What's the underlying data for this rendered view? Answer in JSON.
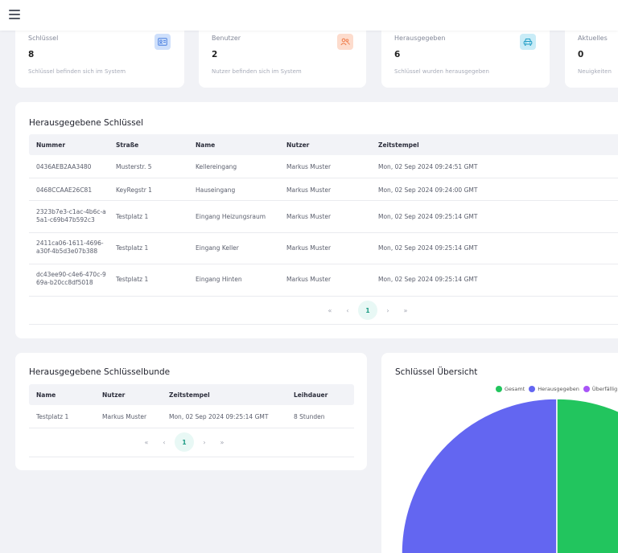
{
  "stats": [
    {
      "label": "Schlüssel",
      "value": "8",
      "desc": "Schlüssel befinden sich im System",
      "icon": "id-card-icon",
      "icon_bg": "#cfe0fb",
      "icon_color": "#4a7fe0"
    },
    {
      "label": "Benutzer",
      "value": "2",
      "desc": "Nutzer befinden sich im System",
      "icon": "users-icon",
      "icon_bg": "#fddccd",
      "icon_color": "#ef7b49"
    },
    {
      "label": "Herausgegeben",
      "value": "6",
      "desc": "Schlüssel wurden herausgegeben",
      "icon": "car-icon",
      "icon_bg": "#c9ecf7",
      "icon_color": "#1e9cc4"
    },
    {
      "label": "Aktuelles",
      "value": "0",
      "desc": "Neuigkeiten"
    }
  ],
  "keys_table": {
    "title": "Herausgegebene Schlüssel",
    "columns": [
      "Nummer",
      "Straße",
      "Name",
      "Nutzer",
      "Zeitstempel"
    ],
    "rows": [
      [
        "0436AEB2AA3480",
        "Musterstr. 5",
        "Kellereingang",
        "Markus Muster",
        "Mon, 02 Sep 2024 09:24:51 GMT"
      ],
      [
        "0468CCAAE26C81",
        "KeyRegstr 1",
        "Hauseingang",
        "Markus Muster",
        "Mon, 02 Sep 2024 09:24:00 GMT"
      ],
      [
        "2323b7e3-c1ac-4b6c-a5a1-c69b47b592c3",
        "Testplatz 1",
        "Eingang Heizungsraum",
        "Markus Muster",
        "Mon, 02 Sep 2024 09:25:14 GMT"
      ],
      [
        "2411ca06-1611-4696-a30f-4b5d3e07b388",
        "Testplatz 1",
        "Eingang Keller",
        "Markus Muster",
        "Mon, 02 Sep 2024 09:25:14 GMT"
      ],
      [
        "dc43ee90-c4e6-470c-969a-b20cc8df5018",
        "Testplatz 1",
        "Eingang Hinten",
        "Markus Muster",
        "Mon, 02 Sep 2024 09:25:14 GMT"
      ]
    ],
    "pager": {
      "first": "«",
      "prev": "‹",
      "page": "1",
      "next": "›",
      "last": "»"
    }
  },
  "bundles_table": {
    "title": "Herausgegebene Schlüsselbunde",
    "columns": [
      "Name",
      "Nutzer",
      "Zeitstempel",
      "Leihdauer"
    ],
    "rows": [
      [
        "Testplatz 1",
        "Markus Muster",
        "Mon, 02 Sep 2024 09:25:14 GMT",
        "8 Stunden"
      ]
    ],
    "pager": {
      "first": "«",
      "prev": "‹",
      "page": "1",
      "next": "›",
      "last": "»"
    }
  },
  "overview": {
    "title": "Schlüssel Übersicht",
    "legend": [
      {
        "label": "Gesamt",
        "color": "#22c55e"
      },
      {
        "label": "Herausgegeben",
        "color": "#6366f1"
      },
      {
        "label": "Überfällig",
        "color": "#a855f7"
      }
    ]
  }
}
